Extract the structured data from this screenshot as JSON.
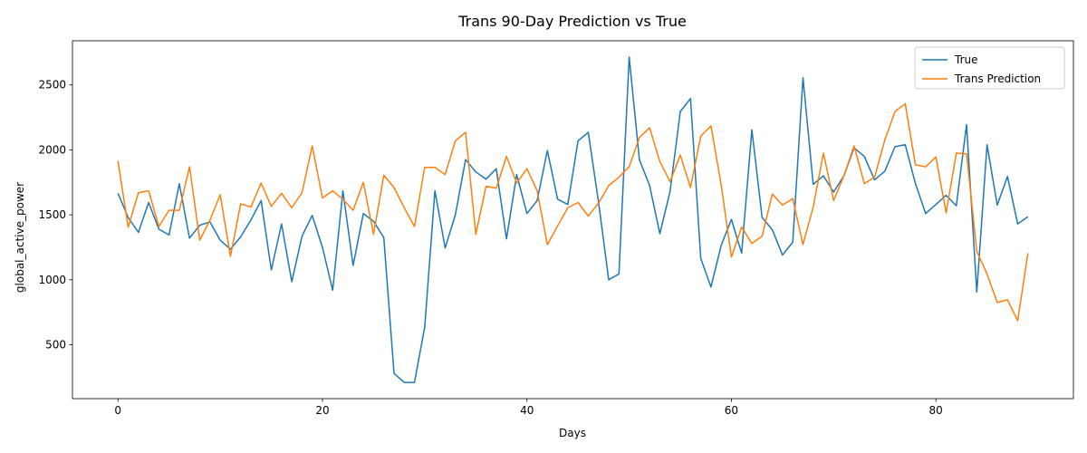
{
  "chart_data": {
    "type": "line",
    "title": "Trans 90-Day Prediction vs True",
    "xlabel": "Days",
    "ylabel": "global_active_power",
    "xlim": [
      -4.45,
      93.45
    ],
    "ylim": [
      85,
      2840
    ],
    "xticks": [
      0,
      20,
      40,
      60,
      80
    ],
    "yticks": [
      500,
      1000,
      1500,
      2000,
      2500
    ],
    "grid": false,
    "legend_position": "top-right",
    "x": [
      0,
      1,
      2,
      3,
      4,
      5,
      6,
      7,
      8,
      9,
      10,
      11,
      12,
      13,
      14,
      15,
      16,
      17,
      18,
      19,
      20,
      21,
      22,
      23,
      24,
      25,
      26,
      27,
      28,
      29,
      30,
      31,
      32,
      33,
      34,
      35,
      36,
      37,
      38,
      39,
      40,
      41,
      42,
      43,
      44,
      45,
      46,
      47,
      48,
      49,
      50,
      51,
      52,
      53,
      54,
      55,
      56,
      57,
      58,
      59,
      60,
      61,
      62,
      63,
      64,
      65,
      66,
      67,
      68,
      69,
      70,
      71,
      72,
      73,
      74,
      75,
      76,
      77,
      78,
      79,
      80,
      81,
      82,
      83,
      84,
      85,
      86,
      87,
      88,
      89
    ],
    "series": [
      {
        "name": "True",
        "color": "#1f77b4",
        "values": [
          1665,
          1480,
          1365,
          1595,
          1390,
          1345,
          1740,
          1320,
          1420,
          1445,
          1305,
          1235,
          1330,
          1460,
          1610,
          1075,
          1430,
          985,
          1335,
          1495,
          1250,
          920,
          1685,
          1110,
          1510,
          1450,
          1325,
          280,
          210,
          210,
          635,
          1685,
          1245,
          1500,
          1925,
          1830,
          1775,
          1855,
          1315,
          1810,
          1510,
          1610,
          1995,
          1620,
          1580,
          2070,
          2135,
          1600,
          1000,
          1045,
          2715,
          1925,
          1725,
          1355,
          1680,
          2295,
          2395,
          1165,
          945,
          1265,
          1465,
          1205,
          2155,
          1480,
          1385,
          1190,
          1290,
          2555,
          1735,
          1800,
          1675,
          1800,
          2015,
          1950,
          1770,
          1835,
          2025,
          2040,
          1740,
          1510,
          1580,
          1650,
          1570,
          2195,
          905,
          2040,
          1575,
          1795,
          1430,
          1485
        ]
      },
      {
        "name": "Trans Prediction",
        "color": "#ff7f0e",
        "values": [
          1915,
          1405,
          1670,
          1685,
          1410,
          1535,
          1535,
          1870,
          1305,
          1460,
          1655,
          1180,
          1585,
          1560,
          1745,
          1565,
          1665,
          1555,
          1670,
          2030,
          1630,
          1685,
          1620,
          1535,
          1750,
          1350,
          1805,
          1710,
          1555,
          1410,
          1865,
          1865,
          1810,
          2070,
          2135,
          1350,
          1720,
          1705,
          1950,
          1745,
          1855,
          1685,
          1270,
          1415,
          1555,
          1595,
          1490,
          1590,
          1725,
          1790,
          1870,
          2095,
          2170,
          1910,
          1755,
          1960,
          1710,
          2105,
          2185,
          1730,
          1175,
          1405,
          1280,
          1335,
          1660,
          1575,
          1625,
          1270,
          1560,
          1975,
          1610,
          1800,
          2030,
          1740,
          1790,
          2075,
          2295,
          2355,
          1885,
          1870,
          1945,
          1515,
          1975,
          1970,
          1220,
          1045,
          825,
          845,
          685,
          1205
        ]
      }
    ]
  }
}
